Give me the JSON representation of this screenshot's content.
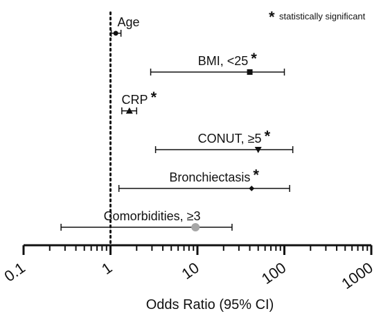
{
  "chart_data": {
    "type": "forest",
    "xlabel": "Odds Ratio (95% CI)",
    "xscale": "log",
    "xlim": [
      0.1,
      1000
    ],
    "x_ticks": [
      0.1,
      1,
      10,
      100,
      1000
    ],
    "x_tick_labels": [
      "0.1",
      "1",
      "10",
      "100",
      "1000"
    ],
    "reference_line": 1,
    "legend_note": {
      "symbol": "*",
      "text": "statistically significant",
      "position": "top-right"
    },
    "rows": [
      {
        "label": "Age",
        "or": 1.15,
        "ci": [
          1.02,
          1.32
        ],
        "marker": "circle",
        "significant": false
      },
      {
        "label": "BMI, <25",
        "or": 40,
        "ci": [
          2.9,
          100
        ],
        "marker": "square",
        "significant": true
      },
      {
        "label": "CRP",
        "or": 1.65,
        "ci": [
          1.35,
          2.0
        ],
        "marker": "triangle-up",
        "significant": true
      },
      {
        "label": "CONUT, ≥5",
        "or": 50,
        "ci": [
          3.3,
          125
        ],
        "marker": "triangle-down",
        "significant": true
      },
      {
        "label": "Bronchiectasis",
        "or": 42,
        "ci": [
          1.25,
          115
        ],
        "marker": "diamond",
        "significant": true
      },
      {
        "label": "Comorbidities, ≥3",
        "or": 9.5,
        "ci": [
          0.27,
          25
        ],
        "marker": "large-circle-grey",
        "significant": false
      }
    ],
    "colors": {
      "marker": "#111111",
      "highlight_marker": "#a6a6a6",
      "axis": "#111111"
    }
  }
}
